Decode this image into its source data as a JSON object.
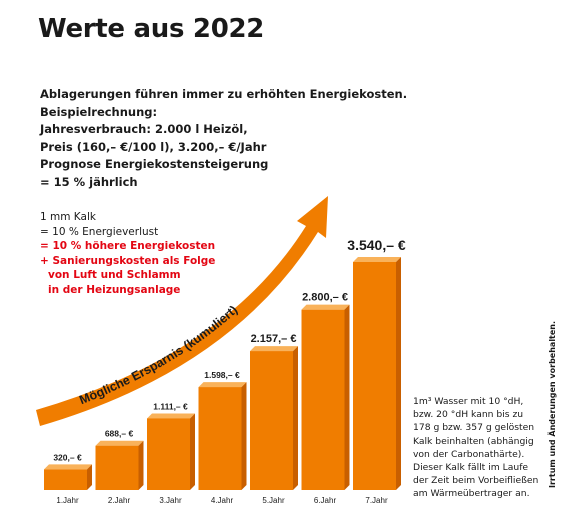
{
  "page": {
    "title": "Werte aus 2022",
    "intro_lines": [
      "Ablagerungen führen immer zu erhöhten Energiekosten.",
      "Beispielrechnung:",
      "Jahresverbrauch: 2.000 l Heizöl,",
      "Preis (160,– €/100 l), 3.200,– €/Jahr",
      "Prognose Energiekostensteigerung",
      "= 15 % jährlich"
    ],
    "kalk_lines": [
      "1 mm Kalk",
      "= 10 % Energieverlust",
      "= 10 % höhere Energiekosten",
      "+ Sanierungskosten als Folge",
      "von Luft und Schlamm",
      "in der Heizungsanlage"
    ],
    "note_lines": [
      "1m³ Wasser mit 10 °dH,",
      "bzw. 20 °dH kann bis zu",
      "178 g bzw. 357 g gelösten",
      "Kalk beinhalten (abhängig",
      "von der Carbonathärte).",
      "Dieser Kalk fällt im Laufe",
      "der Zeit beim Vorbeifließen",
      "am Wärmeübertrager an."
    ],
    "disclaimer": "Irrtum und Änderungen vorbehalten."
  },
  "colors": {
    "bar_front": "#f07d00",
    "bar_top": "#f9b25a",
    "bar_side": "#c85f00",
    "arrow": "#f07d00",
    "red_text": "#e30613"
  },
  "chart_data": {
    "type": "bar",
    "categories": [
      "1.Jahr",
      "2.Jahr",
      "3.Jahr",
      "4.Jahr",
      "5.Jahr",
      "6.Jahr",
      "7.Jahr"
    ],
    "values": [
      320,
      688,
      1111,
      1598,
      2157,
      2800,
      3540
    ],
    "data_labels": [
      "320,– €",
      "688,– €",
      "1.111,– €",
      "1.598,– €",
      "2.157,– €",
      "2.800,– €",
      "3.540,– €"
    ],
    "arrow_label": "Mögliche Ersparnis (kumuliert)",
    "ylim": [
      0,
      3540
    ]
  }
}
